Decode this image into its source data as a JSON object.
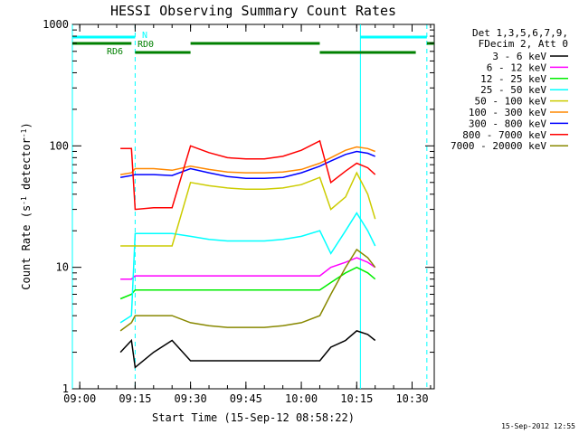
{
  "chart_data": {
    "type": "line",
    "title": "HESSI Observing Summary Count Rates",
    "xlabel": "Start Time (15-Sep-12 08:58:22)",
    "ylabel_prefix": "Count Rate (s",
    "ylabel_sup1": "-1",
    "ylabel_mid": " detector",
    "ylabel_sup2": "-1",
    "ylabel_suffix": ")",
    "y_scale": "log",
    "xlim": [
      "08:58",
      "10:36"
    ],
    "ylim": [
      1,
      1000
    ],
    "x_ticks": [
      "09:00",
      "09:15",
      "09:30",
      "09:45",
      "10:00",
      "10:15",
      "10:30"
    ],
    "y_ticks": [
      "1",
      "10",
      "100",
      "1000"
    ],
    "legend_header": [
      "Det 1,3,5,6,7,9,",
      "FDecim 2, Att 0"
    ],
    "series": [
      {
        "name": "3 - 6 keV",
        "color": "#000000",
        "x": [
          "09:11",
          "09:14",
          "09:15",
          "09:20",
          "09:25",
          "09:30",
          "09:35",
          "09:40",
          "09:45",
          "09:50",
          "09:55",
          "10:00",
          "10:05",
          "10:08",
          "10:12",
          "10:15",
          "10:18",
          "10:20"
        ],
        "y": [
          2,
          2.5,
          1.5,
          2,
          2.5,
          1.7,
          1.7,
          1.7,
          1.7,
          1.7,
          1.7,
          1.7,
          1.7,
          2.2,
          2.5,
          3,
          2.8,
          2.5
        ]
      },
      {
        "name": "6 - 12 keV",
        "color": "#ff00ff",
        "x": [
          "09:11",
          "09:14",
          "09:15",
          "09:20",
          "09:25",
          "09:30",
          "09:35",
          "09:40",
          "09:45",
          "09:50",
          "09:55",
          "10:00",
          "10:05",
          "10:08",
          "10:12",
          "10:15",
          "10:18",
          "10:20"
        ],
        "y": [
          8,
          8,
          8.5,
          8.5,
          8.5,
          8.5,
          8.5,
          8.5,
          8.5,
          8.5,
          8.5,
          8.5,
          8.5,
          10,
          11,
          12,
          11,
          10
        ]
      },
      {
        "name": "12 - 25 keV",
        "color": "#00ee00",
        "x": [
          "09:11",
          "09:14",
          "09:15",
          "09:20",
          "09:25",
          "09:30",
          "09:35",
          "09:40",
          "09:45",
          "09:50",
          "09:55",
          "10:00",
          "10:05",
          "10:08",
          "10:12",
          "10:15",
          "10:18",
          "10:20"
        ],
        "y": [
          5.5,
          6,
          6.5,
          6.5,
          6.5,
          6.5,
          6.5,
          6.5,
          6.5,
          6.5,
          6.5,
          6.5,
          6.5,
          7.5,
          9,
          10,
          9,
          8
        ]
      },
      {
        "name": "25 - 50 keV",
        "color": "#00ffff",
        "x": [
          "09:11",
          "09:14",
          "09:15",
          "09:20",
          "09:25",
          "09:30",
          "09:35",
          "09:40",
          "09:45",
          "09:50",
          "09:55",
          "10:00",
          "10:05",
          "10:08",
          "10:12",
          "10:15",
          "10:18",
          "10:20"
        ],
        "y": [
          3.5,
          4,
          19,
          19,
          19,
          18,
          17,
          16.5,
          16.5,
          16.5,
          17,
          18,
          20,
          13,
          20,
          28,
          20,
          15
        ]
      },
      {
        "name": "50 - 100 keV",
        "color": "#cccc00",
        "x": [
          "09:11",
          "09:14",
          "09:15",
          "09:20",
          "09:25",
          "09:30",
          "09:35",
          "09:40",
          "09:45",
          "09:50",
          "09:55",
          "10:00",
          "10:05",
          "10:08",
          "10:12",
          "10:15",
          "10:18",
          "10:20"
        ],
        "y": [
          15,
          15,
          15,
          15,
          15,
          50,
          47,
          45,
          44,
          44,
          45,
          48,
          55,
          30,
          38,
          60,
          40,
          25
        ]
      },
      {
        "name": "100 - 300 keV",
        "color": "#ff8800",
        "x": [
          "09:11",
          "09:14",
          "09:15",
          "09:20",
          "09:25",
          "09:30",
          "09:35",
          "09:40",
          "09:45",
          "09:50",
          "09:55",
          "10:00",
          "10:05",
          "10:08",
          "10:12",
          "10:15",
          "10:18",
          "10:20"
        ],
        "y": [
          58,
          60,
          65,
          65,
          63,
          68,
          64,
          61,
          60,
          60,
          61,
          64,
          72,
          80,
          92,
          98,
          95,
          90
        ]
      },
      {
        "name": "300 - 800 keV",
        "color": "#0000ff",
        "x": [
          "09:11",
          "09:14",
          "09:15",
          "09:20",
          "09:25",
          "09:30",
          "09:35",
          "09:40",
          "09:45",
          "09:50",
          "09:55",
          "10:00",
          "10:05",
          "10:08",
          "10:12",
          "10:15",
          "10:18",
          "10:20"
        ],
        "y": [
          55,
          57,
          58,
          58,
          57,
          65,
          60,
          56,
          54,
          54,
          55,
          60,
          68,
          75,
          85,
          90,
          87,
          82
        ]
      },
      {
        "name": "800 - 7000 keV",
        "color": "#ff0000",
        "x": [
          "09:11",
          "09:14",
          "09:15",
          "09:20",
          "09:25",
          "09:30",
          "09:35",
          "09:40",
          "09:45",
          "09:50",
          "09:55",
          "10:00",
          "10:05",
          "10:08",
          "10:12",
          "10:15",
          "10:18",
          "10:20"
        ],
        "y": [
          95,
          95,
          30,
          31,
          31,
          100,
          88,
          80,
          78,
          78,
          82,
          92,
          110,
          50,
          62,
          72,
          66,
          58
        ]
      },
      {
        "name": "7000 - 20000 keV",
        "color": "#888800",
        "x": [
          "09:11",
          "09:14",
          "09:15",
          "09:20",
          "09:25",
          "09:30",
          "09:35",
          "09:40",
          "09:45",
          "09:50",
          "09:55",
          "10:00",
          "10:05",
          "10:08",
          "10:12",
          "10:15",
          "10:18",
          "10:20"
        ],
        "y": [
          3,
          3.5,
          4,
          4,
          4,
          3.5,
          3.3,
          3.2,
          3.2,
          3.2,
          3.3,
          3.5,
          4,
          6,
          10,
          14,
          12,
          10
        ]
      }
    ],
    "flags": {
      "N_label": "N",
      "RD0_label": "RD0",
      "RD6_label": "RD6",
      "N_color": "#00ffff",
      "RD_color": "#008000",
      "N_intervals": [
        [
          "08:58",
          "09:15"
        ],
        [
          "10:16",
          "10:34"
        ]
      ],
      "RD0_intervals": [
        [
          "08:58",
          "09:14"
        ],
        [
          "09:30",
          "10:05"
        ],
        [
          "10:34",
          "10:36"
        ]
      ],
      "RD6_intervals": [
        [
          "09:15",
          "09:30"
        ],
        [
          "10:05",
          "10:31"
        ]
      ],
      "night_lines": [
        "09:15",
        "10:34"
      ],
      "day_lines": [
        "08:58",
        "10:16"
      ]
    },
    "legend_position": "right"
  },
  "timestamp": "15-Sep-2012 12:55"
}
